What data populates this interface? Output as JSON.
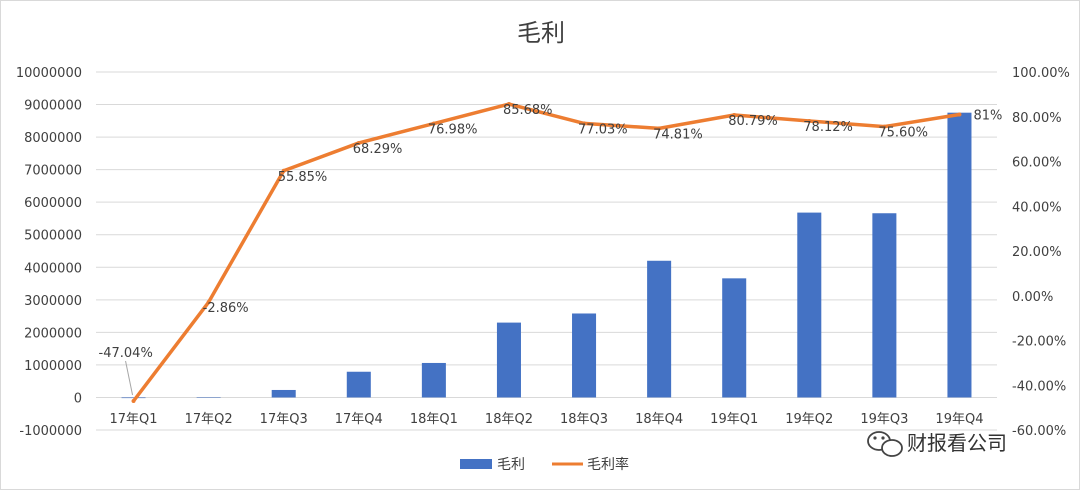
{
  "chart_data": {
    "type": "bar",
    "title": "毛利",
    "categories": [
      "17年Q1",
      "17年Q2",
      "17年Q3",
      "17年Q4",
      "18年Q1",
      "18年Q2",
      "18年Q3",
      "18年Q4",
      "19年Q1",
      "19年Q2",
      "19年Q3",
      "19年Q4"
    ],
    "series": [
      {
        "name": "毛利",
        "type": "bar",
        "axis": "left",
        "color": "#4472c4",
        "values": [
          -20000,
          10000,
          230000,
          790000,
          1060000,
          2300000,
          2580000,
          4200000,
          3660000,
          5680000,
          5660000,
          8750000
        ]
      },
      {
        "name": "毛利率",
        "type": "line",
        "axis": "right",
        "color": "#ed7d31",
        "values": [
          -47.04,
          -2.86,
          55.85,
          68.29,
          76.98,
          85.68,
          77.03,
          74.81,
          80.79,
          78.12,
          75.6,
          81.0
        ],
        "labels": [
          "-47.04%",
          "-2.86%",
          "55.85%",
          "68.29%",
          "76.98%",
          "85.68%",
          "77.03%",
          "74.81%",
          "80.79%",
          "78.12%",
          "75.60%",
          "81%"
        ]
      }
    ],
    "y_left": {
      "lim": [
        -1000000,
        10000000
      ],
      "ticks": [
        "-1000000",
        "0",
        "1000000",
        "2000000",
        "3000000",
        "4000000",
        "5000000",
        "6000000",
        "7000000",
        "8000000",
        "9000000",
        "10000000"
      ]
    },
    "y_right": {
      "lim": [
        -60,
        100
      ],
      "ticks": [
        "-60.00%",
        "-40.00%",
        "-20.00%",
        "0.00%",
        "20.00%",
        "40.00%",
        "60.00%",
        "80.00%",
        "100.00%"
      ]
    },
    "grid": true,
    "legend": "bottom"
  },
  "watermark": {
    "icon": "wechat-icon",
    "text": "财报看公司"
  }
}
